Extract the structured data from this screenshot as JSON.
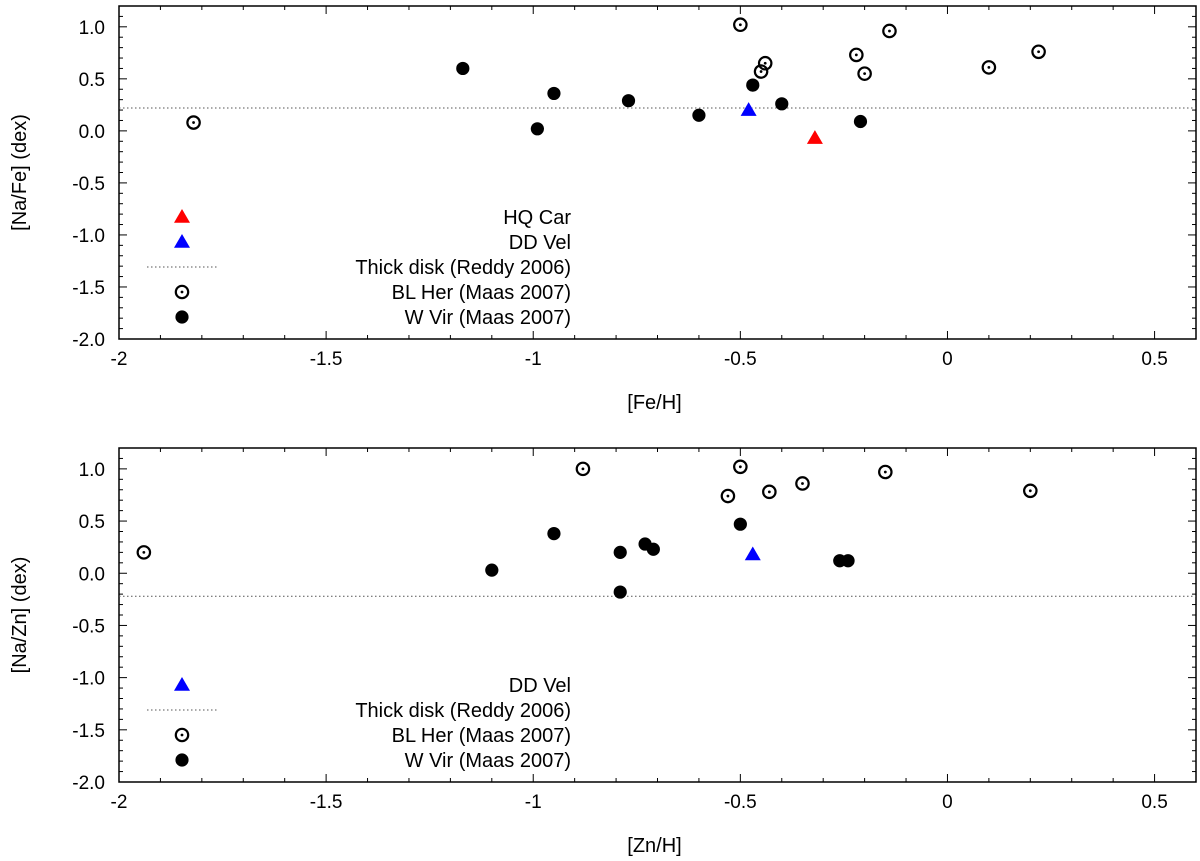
{
  "chart_data": [
    {
      "type": "scatter",
      "xlabel": "[Fe/H]",
      "ylabel": "[Na/Fe] (dex)",
      "xlim": [
        -2,
        0.6
      ],
      "ylim": [
        -2.0,
        1.2
      ],
      "xticks": [
        -2,
        -1.5,
        -1,
        -0.5,
        0,
        0.5
      ],
      "xtick_labels": [
        "-2",
        "-1.5",
        "-1",
        "-0.5",
        "0",
        "0.5"
      ],
      "yticks": [
        -2.0,
        -1.5,
        -1.0,
        -0.5,
        0.0,
        0.5,
        1.0
      ],
      "ytick_labels": [
        "-2.0",
        "-1.5",
        "-1.0",
        "-0.5",
        "0.0",
        "0.5",
        "1.0"
      ],
      "grid": false,
      "legend_position": "lower-left",
      "reference_line": {
        "name": "Thick disk (Reddy 2006)",
        "y": 0.22
      },
      "series": [
        {
          "name": "HQ Car",
          "marker": "triangle",
          "color": "#ff0000",
          "points": [
            {
              "x": -0.32,
              "y": -0.07
            }
          ]
        },
        {
          "name": "DD Vel",
          "marker": "triangle",
          "color": "#0000ff",
          "points": [
            {
              "x": -0.48,
              "y": 0.2
            }
          ]
        },
        {
          "name": "BL Her (Maas 2007)",
          "marker": "circle-dot",
          "color": "#000000",
          "points": [
            {
              "x": -1.82,
              "y": 0.08
            },
            {
              "x": -0.5,
              "y": 1.02
            },
            {
              "x": -0.45,
              "y": 0.57
            },
            {
              "x": -0.44,
              "y": 0.65
            },
            {
              "x": -0.22,
              "y": 0.73
            },
            {
              "x": -0.2,
              "y": 0.55
            },
            {
              "x": -0.14,
              "y": 0.96
            },
            {
              "x": 0.1,
              "y": 0.61
            },
            {
              "x": 0.22,
              "y": 0.76
            }
          ]
        },
        {
          "name": "W Vir (Maas 2007)",
          "marker": "filled-circle",
          "color": "#000000",
          "points": [
            {
              "x": -1.17,
              "y": 0.6
            },
            {
              "x": -0.99,
              "y": 0.02
            },
            {
              "x": -0.95,
              "y": 0.36
            },
            {
              "x": -0.77,
              "y": 0.29
            },
            {
              "x": -0.6,
              "y": 0.15
            },
            {
              "x": -0.47,
              "y": 0.44
            },
            {
              "x": -0.4,
              "y": 0.26
            },
            {
              "x": -0.21,
              "y": 0.09
            }
          ]
        }
      ]
    },
    {
      "type": "scatter",
      "xlabel": "[Zn/H]",
      "ylabel": "[Na/Zn] (dex)",
      "xlim": [
        -2,
        0.6
      ],
      "ylim": [
        -2.0,
        1.2
      ],
      "xticks": [
        -2,
        -1.5,
        -1,
        -0.5,
        0,
        0.5
      ],
      "xtick_labels": [
        "-2",
        "-1.5",
        "-1",
        "-0.5",
        "0",
        "0.5"
      ],
      "yticks": [
        -2.0,
        -1.5,
        -1.0,
        -0.5,
        0.0,
        0.5,
        1.0
      ],
      "ytick_labels": [
        "-2.0",
        "-1.5",
        "-1.0",
        "-0.5",
        "0.0",
        "0.5",
        "1.0"
      ],
      "grid": false,
      "legend_position": "lower-left",
      "reference_line": {
        "name": "Thick disk (Reddy 2006)",
        "y": -0.22
      },
      "series": [
        {
          "name": "DD Vel",
          "marker": "triangle",
          "color": "#0000ff",
          "points": [
            {
              "x": -0.47,
              "y": 0.18
            }
          ]
        },
        {
          "name": "BL Her (Maas 2007)",
          "marker": "circle-dot",
          "color": "#000000",
          "points": [
            {
              "x": -1.94,
              "y": 0.2
            },
            {
              "x": -0.88,
              "y": 1.0
            },
            {
              "x": -0.53,
              "y": 0.74
            },
            {
              "x": -0.5,
              "y": 1.02
            },
            {
              "x": -0.43,
              "y": 0.78
            },
            {
              "x": -0.35,
              "y": 0.86
            },
            {
              "x": -0.15,
              "y": 0.97
            },
            {
              "x": 0.2,
              "y": 0.79
            }
          ]
        },
        {
          "name": "W Vir (Maas 2007)",
          "marker": "filled-circle",
          "color": "#000000",
          "points": [
            {
              "x": -1.1,
              "y": 0.03
            },
            {
              "x": -0.95,
              "y": 0.38
            },
            {
              "x": -0.79,
              "y": 0.2
            },
            {
              "x": -0.79,
              "y": -0.18
            },
            {
              "x": -0.73,
              "y": 0.28
            },
            {
              "x": -0.71,
              "y": 0.23
            },
            {
              "x": -0.5,
              "y": 0.47
            },
            {
              "x": -0.26,
              "y": 0.12
            },
            {
              "x": -0.24,
              "y": 0.12
            }
          ]
        }
      ]
    }
  ]
}
